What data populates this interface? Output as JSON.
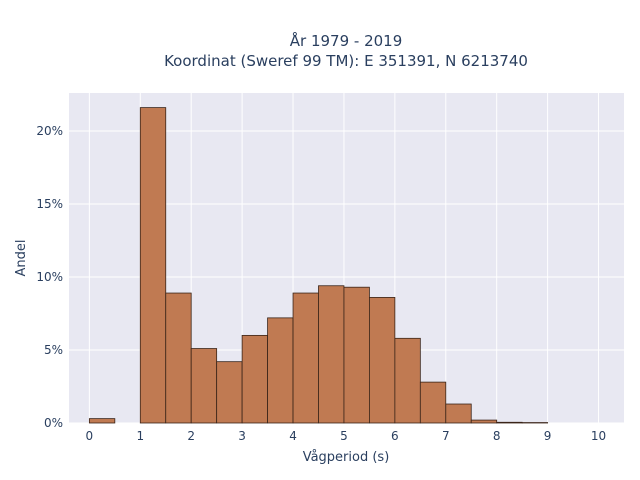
{
  "chart_data": {
    "type": "bar",
    "title_lines": [
      "År 1979 - 2019",
      "Koordinat (Sweref 99 TM): E 351391, N 6213740"
    ],
    "xlabel": "Vågperiod (s)",
    "ylabel": "Andel",
    "xlim": [
      -0.4,
      10.5
    ],
    "ylim": [
      0,
      0.226
    ],
    "x_ticks": [
      0,
      1,
      2,
      3,
      4,
      5,
      6,
      7,
      8,
      9,
      10
    ],
    "x_tick_labels": [
      "0",
      "1",
      "2",
      "3",
      "4",
      "5",
      "6",
      "7",
      "8",
      "9",
      "10"
    ],
    "y_ticks": [
      0,
      0.05,
      0.1,
      0.15,
      0.2
    ],
    "y_tick_labels": [
      "0%",
      "5%",
      "10%",
      "15%",
      "20%"
    ],
    "grid": true,
    "bar_color": "#c07a52",
    "bar_edge_color": "#3a2418",
    "plot_bg": "#e8e8f2",
    "bins": [
      {
        "start": 0.0,
        "end": 0.5,
        "value": 0.003
      },
      {
        "start": 1.0,
        "end": 1.5,
        "value": 0.216
      },
      {
        "start": 1.5,
        "end": 2.0,
        "value": 0.089
      },
      {
        "start": 2.0,
        "end": 2.5,
        "value": 0.051
      },
      {
        "start": 2.5,
        "end": 3.0,
        "value": 0.042
      },
      {
        "start": 3.0,
        "end": 3.5,
        "value": 0.06
      },
      {
        "start": 3.5,
        "end": 4.0,
        "value": 0.072
      },
      {
        "start": 4.0,
        "end": 4.5,
        "value": 0.089
      },
      {
        "start": 4.5,
        "end": 5.0,
        "value": 0.094
      },
      {
        "start": 5.0,
        "end": 5.5,
        "value": 0.093
      },
      {
        "start": 5.5,
        "end": 6.0,
        "value": 0.086
      },
      {
        "start": 6.0,
        "end": 6.5,
        "value": 0.058
      },
      {
        "start": 6.5,
        "end": 7.0,
        "value": 0.028
      },
      {
        "start": 7.0,
        "end": 7.5,
        "value": 0.013
      },
      {
        "start": 7.5,
        "end": 8.0,
        "value": 0.002
      },
      {
        "start": 8.0,
        "end": 8.5,
        "value": 0.0005
      },
      {
        "start": 8.5,
        "end": 9.0,
        "value": 0.0003
      }
    ]
  }
}
